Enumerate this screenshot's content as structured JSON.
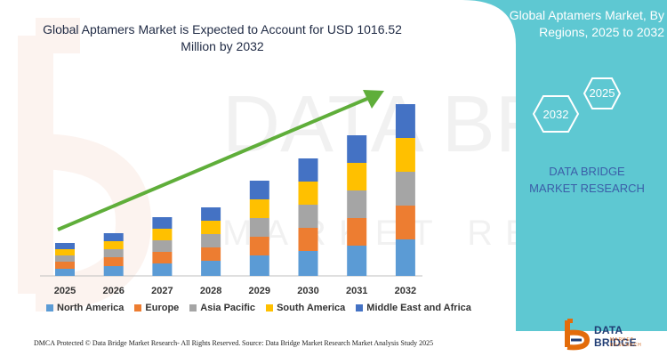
{
  "title": "Global Aptamers Market is Expected to Account for USD 1016.52 Million by 2032",
  "side_panel": {
    "title": "Global Aptamers Market, By Regions, 2025 to 2032",
    "hex_year_top": "2025",
    "hex_year_bottom": "2032",
    "brand_text": "DATA BRIDGE MARKET RESEARCH"
  },
  "footer": {
    "left": "DMCA Protected © Data Bridge Market Research- All Rights Reserved.",
    "right": "Source: Data Bridge Market Research Market Analysis Study 2025"
  },
  "logo": {
    "name": "DATA BRIDGE",
    "sub": "MARKET RESEARCH"
  },
  "watermark": {
    "line1": "DATA BRIDGE",
    "line2": "MARKET RESEARCH"
  },
  "colors": {
    "panel": "#5ec8d2",
    "arrow": "#5fae3a",
    "north_america": "#5b9bd5",
    "europe": "#ed7d31",
    "asia_pacific": "#a5a5a5",
    "south_america": "#ffc000",
    "middle_east_africa": "#4472c4"
  },
  "chart_data": {
    "type": "bar",
    "stacked": true,
    "categories": [
      "2025",
      "2026",
      "2027",
      "2028",
      "2029",
      "2030",
      "2031",
      "2032"
    ],
    "series": [
      {
        "name": "North America",
        "values": [
          8,
          11,
          14,
          17,
          23,
          28,
          34,
          41
        ]
      },
      {
        "name": "Europe",
        "values": [
          8,
          10,
          13,
          15,
          21,
          26,
          31,
          38
        ]
      },
      {
        "name": "Asia Pacific",
        "values": [
          7,
          9,
          13,
          15,
          21,
          26,
          31,
          38
        ]
      },
      {
        "name": "South America",
        "values": [
          7,
          9,
          13,
          15,
          21,
          26,
          31,
          38
        ]
      },
      {
        "name": "Middle East and Africa",
        "values": [
          7,
          9,
          13,
          15,
          21,
          26,
          31,
          38
        ]
      }
    ],
    "ylim": [
      0,
      215
    ],
    "grid": false,
    "legend_position": "bottom",
    "trend_arrow": true
  }
}
